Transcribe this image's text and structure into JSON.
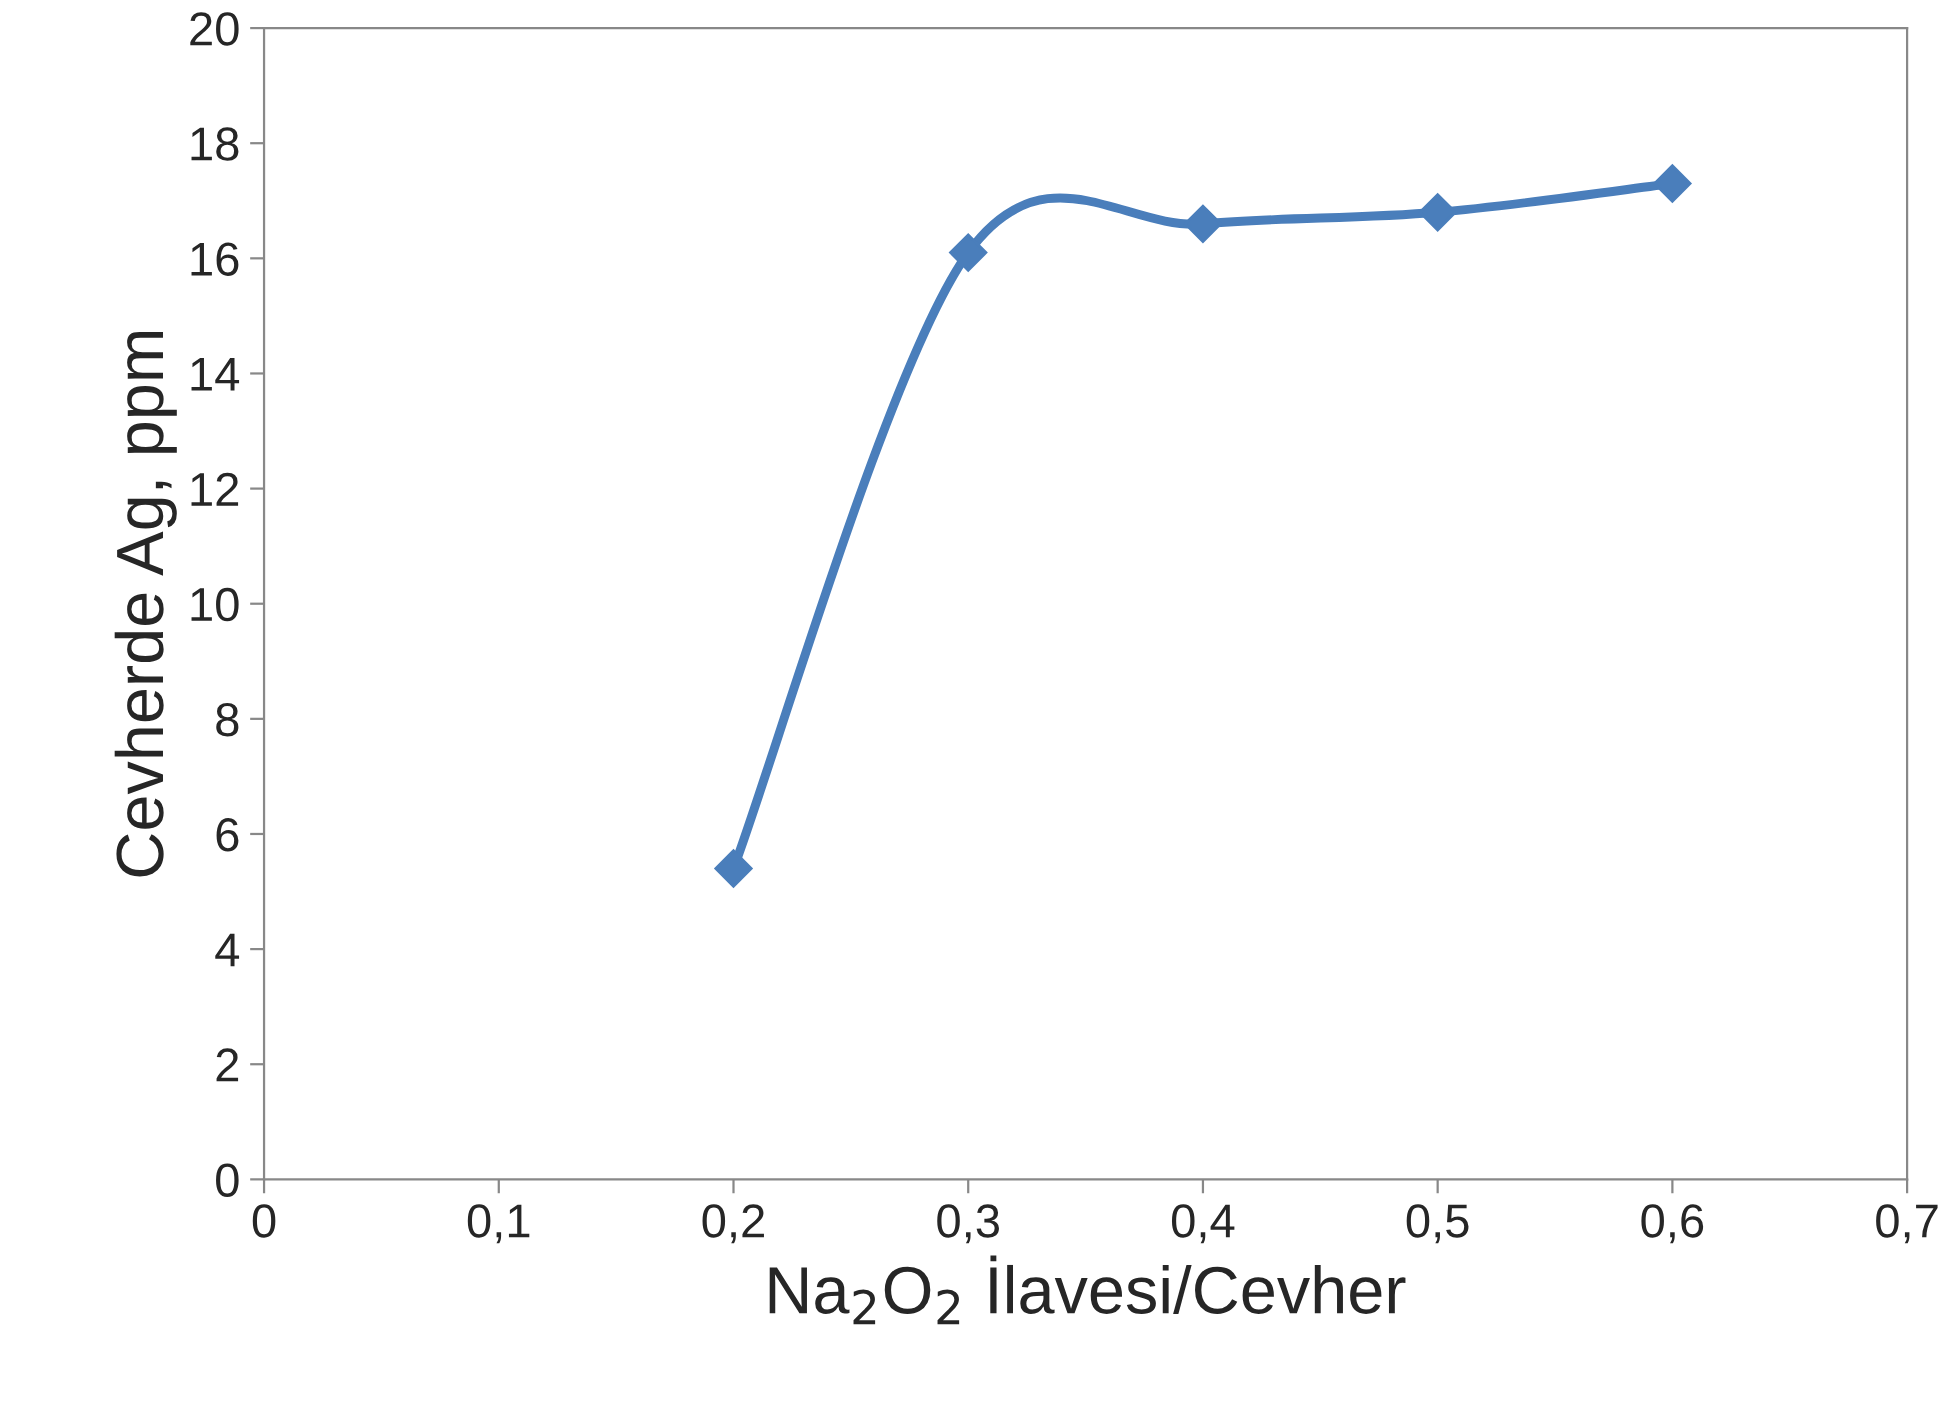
{
  "chart_data": {
    "type": "line",
    "xlabel": "Na$_{2}$O$_{2}$ İlavesi/Cevher",
    "ylabel": "Cevherde Ag, ppm",
    "x": [
      0.2,
      0.3,
      0.4,
      0.5,
      0.6
    ],
    "series": [
      {
        "color": "#4a7ebb",
        "values": [
          5.4,
          16.1,
          16.6,
          16.8,
          17.3
        ]
      }
    ],
    "xlim": [
      0,
      0.7
    ],
    "xticks": [
      {
        "value": 0,
        "label": "0"
      },
      {
        "value": 0.1,
        "label": "0,1"
      },
      {
        "value": 0.2,
        "label": "0,2"
      },
      {
        "value": 0.3,
        "label": "0,3"
      },
      {
        "value": 0.4,
        "label": "0,4"
      },
      {
        "value": 0.5,
        "label": "0,5"
      },
      {
        "value": 0.6,
        "label": "0,6"
      },
      {
        "value": 0.7,
        "label": "0,7"
      }
    ],
    "ylim": [
      0,
      20
    ],
    "yticks": [
      0,
      2,
      4,
      6,
      8,
      10,
      12,
      14,
      16,
      18,
      20
    ],
    "grid": false,
    "legend": false,
    "marker": "diamond",
    "line_style": "solid"
  }
}
